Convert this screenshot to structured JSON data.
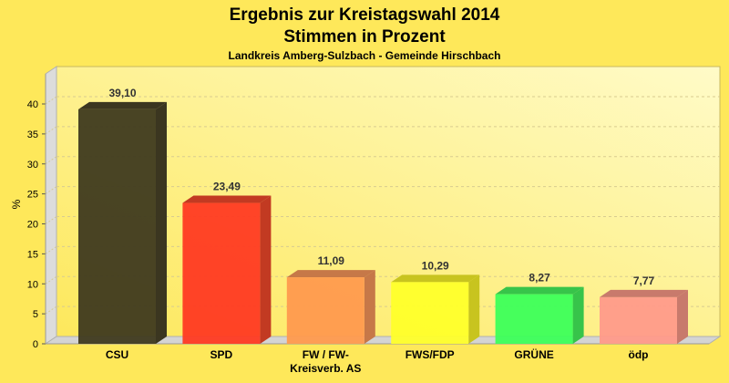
{
  "chart_data": {
    "type": "bar",
    "title": "Ergebnis zur Kreistagswahl 2014",
    "title_line2": "Stimmen in Prozent",
    "subtitle": "Landkreis Amberg-Sulzbach - Gemeinde Hirschbach",
    "xlabel": "",
    "ylabel": "%",
    "ylim": [
      0,
      40
    ],
    "yticks": [
      0,
      5,
      10,
      15,
      20,
      25,
      30,
      35,
      40
    ],
    "grid": true,
    "categories": [
      "CSU",
      "SPD",
      "FW / FW-\nKreisverb. AS",
      "FWS/FDP",
      "GRÜNE",
      "ödp"
    ],
    "values": [
      39.1,
      23.49,
      11.09,
      10.29,
      8.27,
      7.77
    ],
    "value_labels": [
      "39,10",
      "23,49",
      "11,09",
      "10,29",
      "8,27",
      "7,77"
    ],
    "colors": [
      "#3f3a1f",
      "#ff3a22",
      "#ff9a4e",
      "#ffff2a",
      "#3cff5a",
      "#ff9a8a"
    ],
    "side_colors": [
      "#3b3620",
      "#c23a22",
      "#c67848",
      "#c8c41f",
      "#37c44a",
      "#c87a6c"
    ]
  }
}
